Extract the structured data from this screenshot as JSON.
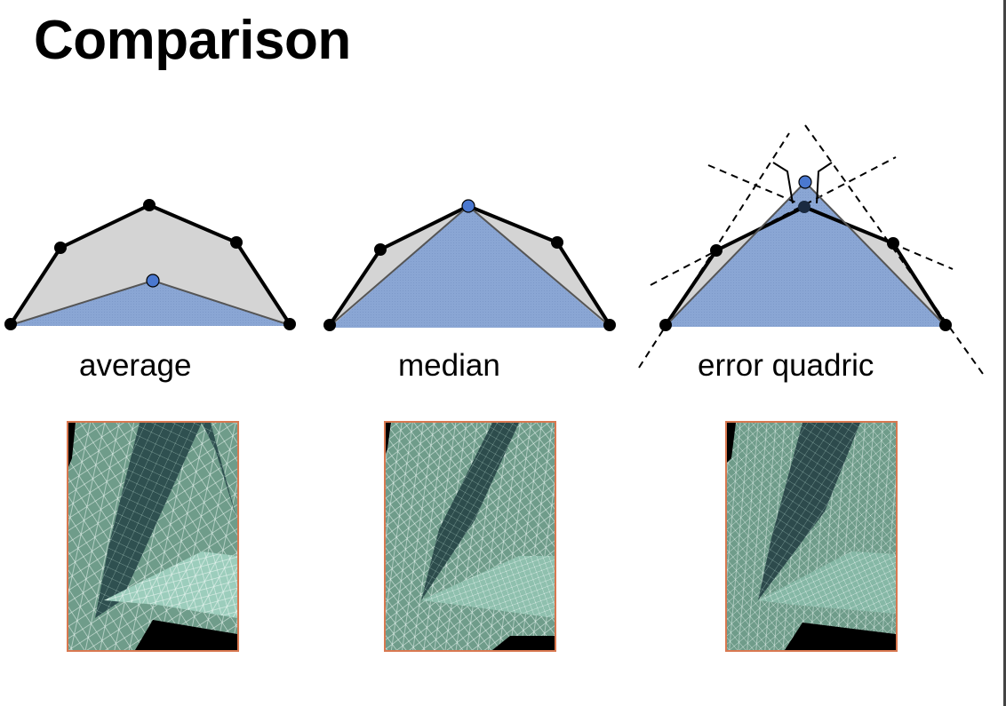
{
  "slide": {
    "title": "Comparison"
  },
  "methods": [
    {
      "label": "average"
    },
    {
      "label": "median"
    },
    {
      "label": "error quadric"
    }
  ],
  "colors": {
    "polygon_fill": "#d4d4d4",
    "result_fill": "#8ba7d4",
    "vertex": "#000000",
    "new_vertex": "#4a78d0",
    "mesh_fill": "#6f9c8a",
    "mesh_dark": "#2f5050",
    "mesh_light": "#a7d6c6",
    "frame": "#d97850"
  },
  "icons": {
    "vertex": "filled-black-circle",
    "new_vertex": "blue-circle"
  }
}
